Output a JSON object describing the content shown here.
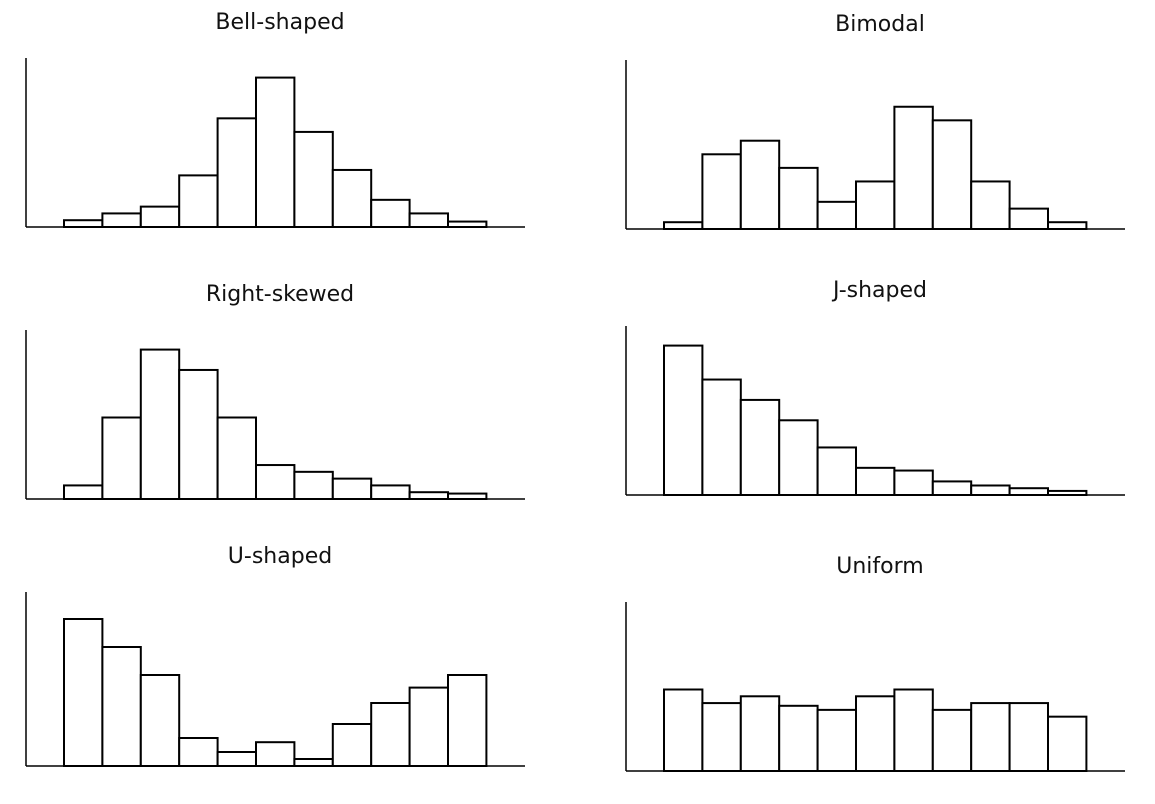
{
  "chart_data": [
    {
      "type": "bar",
      "title": "Bell-shaped",
      "values": [
        0.05,
        0.1,
        0.15,
        0.38,
        0.8,
        1.1,
        0.7,
        0.42,
        0.2,
        0.1,
        0.04
      ]
    },
    {
      "type": "bar",
      "title": "Bimodal",
      "values": [
        0.05,
        0.55,
        0.65,
        0.45,
        0.2,
        0.35,
        0.9,
        0.8,
        0.35,
        0.15,
        0.05
      ]
    },
    {
      "type": "bar",
      "title": "Right-skewed",
      "values": [
        0.1,
        0.6,
        1.1,
        0.95,
        0.6,
        0.25,
        0.2,
        0.15,
        0.1,
        0.05,
        0.04
      ]
    },
    {
      "type": "bar",
      "title": "J-shaped",
      "values": [
        1.1,
        0.85,
        0.7,
        0.55,
        0.35,
        0.2,
        0.18,
        0.1,
        0.07,
        0.05,
        0.03
      ]
    },
    {
      "type": "bar",
      "title": "U-shaped",
      "values": [
        1.05,
        0.85,
        0.65,
        0.2,
        0.1,
        0.17,
        0.05,
        0.3,
        0.45,
        0.56,
        0.65
      ]
    },
    {
      "type": "bar",
      "title": "Uniform",
      "values": [
        0.6,
        0.5,
        0.55,
        0.48,
        0.45,
        0.55,
        0.6,
        0.45,
        0.5,
        0.5,
        0.4
      ]
    }
  ]
}
